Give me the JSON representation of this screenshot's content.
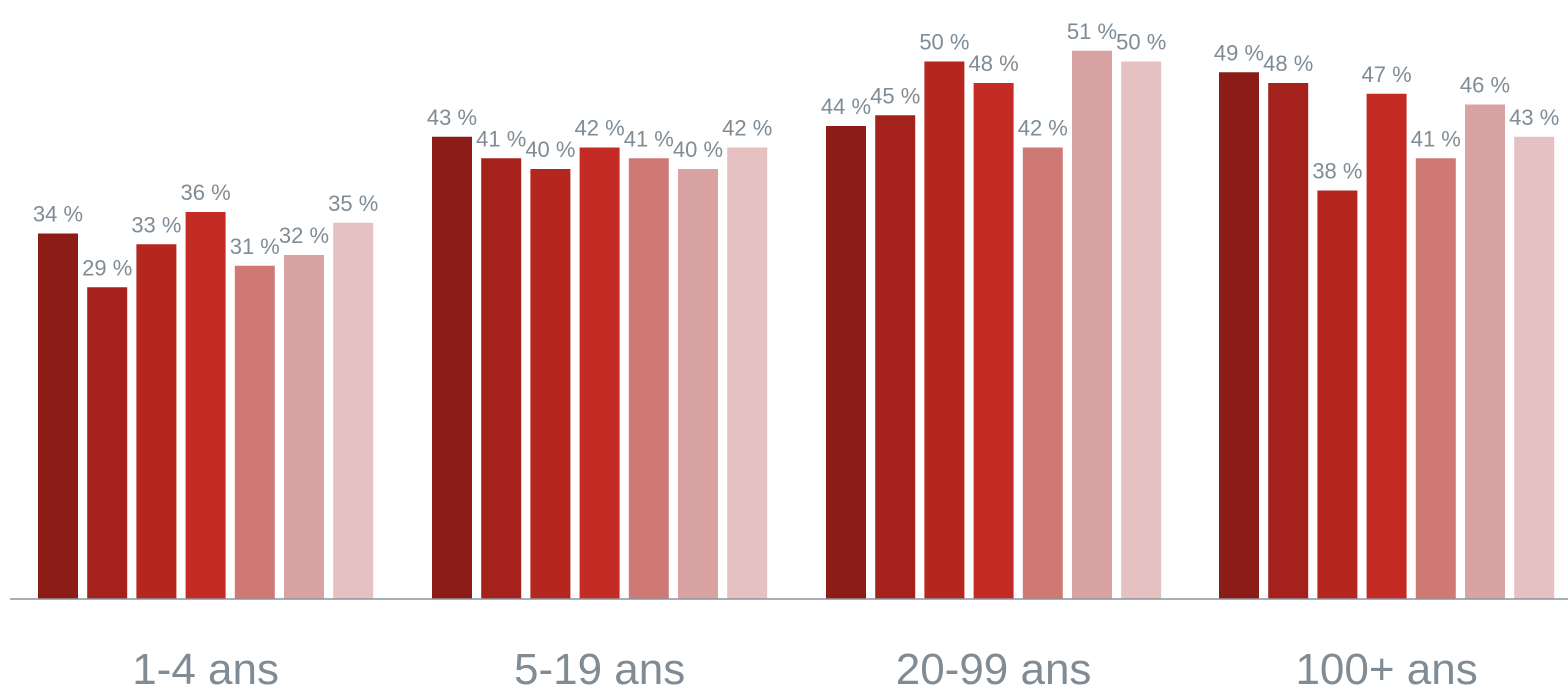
{
  "chart_data": {
    "type": "bar",
    "categories": [
      "1-4 ans",
      "5-19 ans",
      "20-99 ans",
      "100+ ans"
    ],
    "series": [
      {
        "values": [
          34,
          43,
          44,
          49
        ]
      },
      {
        "values": [
          29,
          41,
          45,
          48
        ]
      },
      {
        "values": [
          33,
          40,
          50,
          38
        ]
      },
      {
        "values": [
          36,
          42,
          48,
          47
        ]
      },
      {
        "values": [
          31,
          41,
          42,
          41
        ]
      },
      {
        "values": [
          32,
          40,
          51,
          46
        ]
      },
      {
        "values": [
          35,
          42,
          50,
          43
        ]
      }
    ],
    "value_suffix": " %",
    "ylim": [
      0,
      55
    ],
    "grid": false,
    "title": "",
    "xlabel": "",
    "ylabel": "",
    "colors": [
      "#8b1c17",
      "#a5221c",
      "#b5261f",
      "#c42b25",
      "#cf7975",
      "#daa3a3",
      "#e6c1c1"
    ],
    "label_color": "#7f8c96",
    "axis_color": "#8a959e"
  }
}
